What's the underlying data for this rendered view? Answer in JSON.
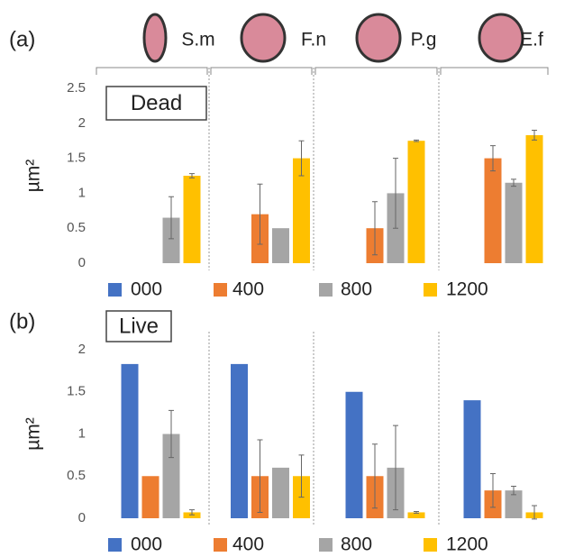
{
  "chart_data": [
    {
      "type": "bar",
      "panel_label": "(a)",
      "title": "Dead",
      "y_label": "µm²",
      "categories": [
        "S.m",
        "F.n",
        "P.g",
        "E.f"
      ],
      "ylim": [
        0,
        2.5
      ],
      "yticks": [
        0,
        0.5,
        1,
        1.5,
        2,
        2.5
      ],
      "series": [
        {
          "name": "000",
          "color": "#4472c4",
          "values": [
            null,
            null,
            null,
            null
          ],
          "errors": [
            null,
            null,
            null,
            null
          ]
        },
        {
          "name": "400",
          "color": "#ed7d31",
          "values": [
            null,
            0.7,
            0.5,
            1.5
          ],
          "errors": [
            null,
            0.43,
            0.38,
            0.18
          ]
        },
        {
          "name": "800",
          "color": "#a5a5a5",
          "values": [
            0.65,
            0.5,
            1.0,
            1.15
          ],
          "errors": [
            0.3,
            null,
            0.5,
            0.05
          ]
        },
        {
          "name": "1200",
          "color": "#ffc000",
          "values": [
            1.25,
            1.5,
            1.75,
            1.83
          ],
          "errors": [
            0.03,
            0.25,
            0.01,
            0.07
          ]
        }
      ]
    },
    {
      "type": "bar",
      "panel_label": "(b)",
      "title": "Live",
      "y_label": "µm²",
      "categories": [
        null,
        null,
        null,
        null
      ],
      "ylim": [
        0,
        2
      ],
      "yticks": [
        0,
        0.5,
        1,
        1.5,
        2
      ],
      "series": [
        {
          "name": "000",
          "color": "#4472c4",
          "values": [
            1.83,
            1.83,
            1.5,
            1.4
          ],
          "errors": [
            null,
            null,
            null,
            null
          ]
        },
        {
          "name": "400",
          "color": "#ed7d31",
          "values": [
            0.5,
            0.5,
            0.5,
            0.33
          ],
          "errors": [
            null,
            0.43,
            0.38,
            0.2
          ]
        },
        {
          "name": "800",
          "color": "#a5a5a5",
          "values": [
            1.0,
            0.6,
            0.6,
            0.33
          ],
          "errors": [
            0.28,
            null,
            0.5,
            0.05
          ]
        },
        {
          "name": "1200",
          "color": "#ffc000",
          "values": [
            0.07,
            0.5,
            0.07,
            0.07
          ],
          "errors": [
            0.03,
            0.25,
            0.01,
            0.08
          ]
        }
      ]
    }
  ]
}
